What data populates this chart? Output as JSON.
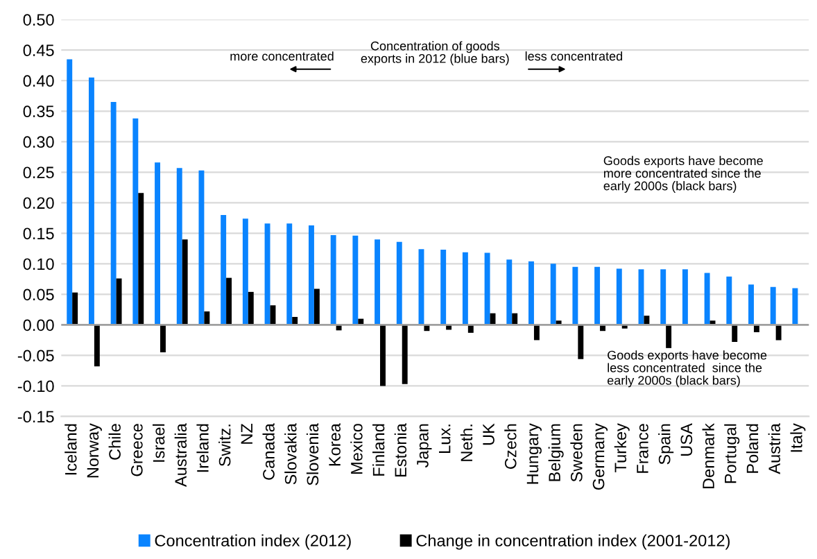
{
  "chart_data": {
    "type": "bar",
    "categories": [
      "Iceland",
      "Norway",
      "Chile",
      "Greece",
      "Israel",
      "Australia",
      "Ireland",
      "Switz.",
      "NZ",
      "Canada",
      "Slovakia",
      "Slovenia",
      "Korea",
      "Mexico",
      "Finland",
      "Estonia",
      "Japan",
      "Lux.",
      "Neth.",
      "UK",
      "Czech",
      "Hungary",
      "Belgium",
      "Sweden",
      "Germany",
      "Turkey",
      "France",
      "Spain",
      "USA",
      "Denmark",
      "Portugal",
      "Poland",
      "Austria",
      "Italy"
    ],
    "series": [
      {
        "name": "Concentration index (2012)",
        "color": "#0a84ff",
        "values": [
          0.435,
          0.405,
          0.365,
          0.338,
          0.266,
          0.257,
          0.253,
          0.18,
          0.174,
          0.166,
          0.166,
          0.163,
          0.147,
          0.146,
          0.14,
          0.136,
          0.124,
          0.123,
          0.119,
          0.118,
          0.107,
          0.104,
          0.1,
          0.095,
          0.095,
          0.092,
          0.091,
          0.091,
          0.091,
          0.085,
          0.079,
          0.066,
          0.062,
          0.06
        ]
      },
      {
        "name": "Change in concentration index (2001-2012)",
        "color": "#000000",
        "values": [
          0.053,
          -0.068,
          0.076,
          0.216,
          -0.045,
          0.14,
          0.022,
          0.077,
          0.054,
          0.032,
          0.013,
          0.059,
          -0.009,
          0.01,
          -0.1,
          -0.097,
          -0.01,
          -0.008,
          -0.013,
          0.019,
          0.019,
          -0.025,
          0.007,
          -0.056,
          -0.01,
          -0.006,
          0.015,
          -0.038,
          null,
          0.007,
          -0.028,
          -0.012,
          -0.025,
          null
        ]
      }
    ],
    "ylim": [
      -0.15,
      0.5
    ],
    "yticks": [
      {
        "value": -0.15,
        "label": "-0.15"
      },
      {
        "value": -0.1,
        "label": "-0.10"
      },
      {
        "value": -0.05,
        "label": "-0.05"
      },
      {
        "value": 0,
        "label": "0.00"
      },
      {
        "value": 0.05,
        "label": "0.05"
      },
      {
        "value": 0.1,
        "label": "0.10"
      },
      {
        "value": 0.15,
        "label": "0.15"
      },
      {
        "value": 0.2,
        "label": "0.20"
      },
      {
        "value": 0.25,
        "label": "0.25"
      },
      {
        "value": 0.3,
        "label": "0.30"
      },
      {
        "value": 0.35,
        "label": "0.35"
      },
      {
        "value": 0.4,
        "label": "0.40"
      },
      {
        "value": 0.45,
        "label": "0.45"
      },
      {
        "value": 0.5,
        "label": "0.50"
      }
    ],
    "grid": "y",
    "legend": "bottom",
    "annotations": [
      "more concentrated",
      "Concentration of goods\nexports in 2012 (blue bars)",
      "less concentrated",
      "Goods exports have become\nmore concentrated since the\nearly 2000s (black bars)",
      "Goods exports have become\nless concentrated  since the\nearly 2000s (black bars)"
    ]
  }
}
